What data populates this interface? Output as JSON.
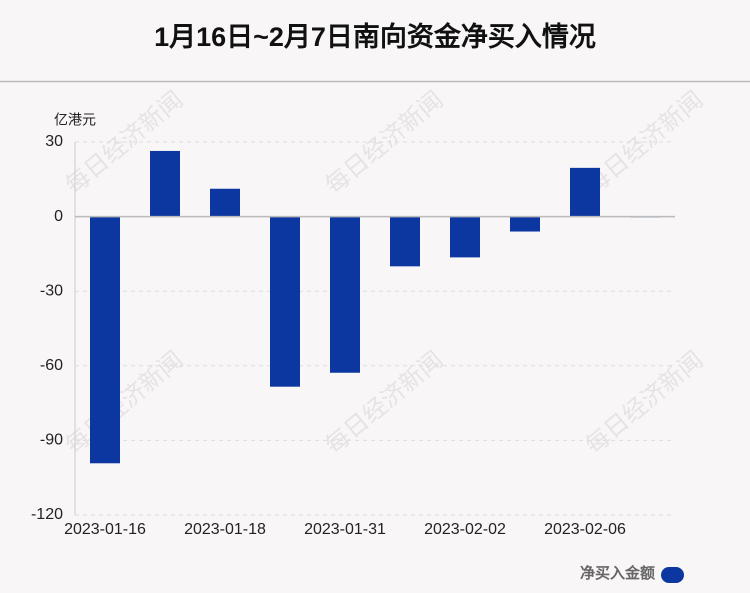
{
  "chart_data": {
    "type": "bar",
    "title": "1月16日~2月7日南向资金净买入情况",
    "y_axis_label": "亿港元",
    "watermark": "每日经济新闻",
    "categories": [
      "2023-01-16",
      null,
      "2023-01-18",
      null,
      "2023-01-31",
      null,
      "2023-02-02",
      null,
      "2023-02-06",
      null
    ],
    "series": [
      {
        "name": "净买入金额",
        "color": "#0c37a0",
        "values": [
          -99.2,
          26.4,
          11.2,
          -68.4,
          -62.8,
          -20,
          -16.4,
          -6,
          19.6,
          -0.3
        ]
      }
    ],
    "ylim": [
      -120,
      30
    ],
    "yticks": [
      30,
      0,
      -30,
      -60,
      -90,
      -120
    ],
    "grid": true,
    "legend": "bottom-right"
  }
}
